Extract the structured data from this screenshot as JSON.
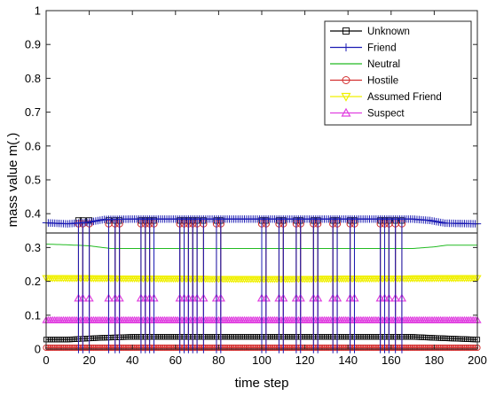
{
  "chart_data": {
    "type": "line",
    "xlabel": "time step",
    "ylabel": "mass value m(.)",
    "xlim": [
      0,
      200
    ],
    "ylim": [
      0,
      1
    ],
    "xticks": [
      "0",
      "20",
      "40",
      "60",
      "80",
      "100",
      "120",
      "140",
      "160",
      "180",
      "200"
    ],
    "yticks": [
      "0",
      "0.1",
      "0.2",
      "0.3",
      "0.4",
      "0.5",
      "0.6",
      "0.7",
      "0.8",
      "0.9",
      "1"
    ],
    "grid": false,
    "legend_position": "top-right",
    "spike_steps": [
      15,
      17,
      20,
      29,
      32,
      34,
      44,
      46,
      48,
      50,
      62,
      64,
      66,
      68,
      70,
      73,
      79,
      81,
      100,
      102,
      108,
      110,
      116,
      118,
      124,
      126,
      133,
      135,
      141,
      143,
      155,
      157,
      159,
      162,
      165
    ],
    "series": [
      {
        "name": "Unknown",
        "color": "#000000",
        "marker": "square",
        "points": [
          [
            0,
            0.028
          ],
          [
            10,
            0.028
          ],
          [
            25,
            0.033
          ],
          [
            40,
            0.036
          ],
          [
            100,
            0.036
          ],
          [
            170,
            0.036
          ],
          [
            180,
            0.033
          ],
          [
            200,
            0.028
          ]
        ],
        "spike_to": 0.38
      },
      {
        "name": "Friend",
        "color": "#1c1cb4",
        "marker": "plus",
        "points": [
          [
            0,
            0.373
          ],
          [
            10,
            0.37
          ],
          [
            20,
            0.375
          ],
          [
            27,
            0.383
          ],
          [
            40,
            0.384
          ],
          [
            100,
            0.384
          ],
          [
            170,
            0.384
          ],
          [
            178,
            0.38
          ],
          [
            185,
            0.372
          ],
          [
            200,
            0.37
          ]
        ],
        "spike_to": 0.0
      },
      {
        "name": "Neutral",
        "color": "#22bb22",
        "marker": "none",
        "points": [
          [
            0,
            0.31
          ],
          [
            10,
            0.308
          ],
          [
            20,
            0.305
          ],
          [
            30,
            0.297
          ],
          [
            100,
            0.297
          ],
          [
            170,
            0.297
          ],
          [
            180,
            0.302
          ],
          [
            186,
            0.307
          ],
          [
            200,
            0.307
          ]
        ],
        "spike_to": null
      },
      {
        "name": "Hostile",
        "color": "#d43030",
        "marker": "circle",
        "points": [
          [
            0,
            0.004
          ],
          [
            200,
            0.004
          ]
        ],
        "spike_to": 0.37
      },
      {
        "name": "Assumed Friend",
        "color": "#f0f000",
        "marker": "triangle-down",
        "points": [
          [
            0,
            0.21
          ],
          [
            100,
            0.207
          ],
          [
            200,
            0.21
          ]
        ],
        "spike_to": null
      },
      {
        "name": "Suspect",
        "color": "#e040e0",
        "marker": "triangle-up",
        "points": [
          [
            0,
            0.085
          ],
          [
            100,
            0.085
          ],
          [
            200,
            0.085
          ]
        ],
        "spike_to": 0.15
      }
    ],
    "reference_lines": [
      {
        "y": 0.343,
        "color": "#000000"
      }
    ]
  }
}
